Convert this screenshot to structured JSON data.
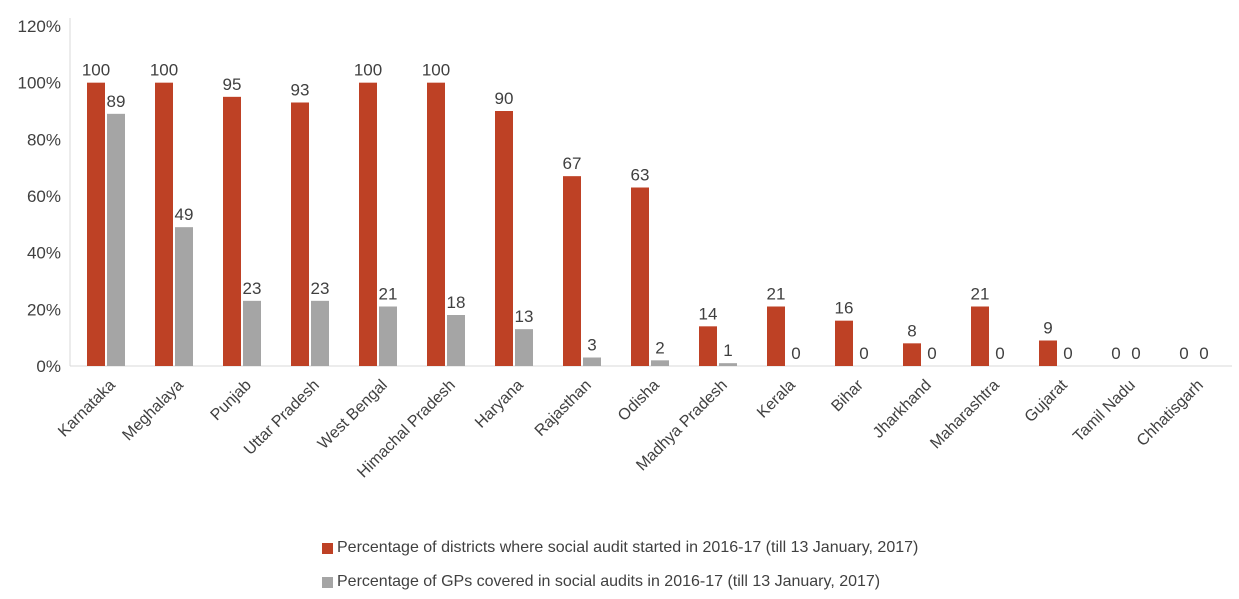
{
  "chart_data": {
    "type": "bar",
    "categories": [
      "Karnataka",
      "Meghalaya",
      "Punjab",
      "Uttar Pradesh",
      "West Bengal",
      "Himachal Pradesh",
      "Haryana",
      "Rajasthan",
      "Odisha",
      "Madhya Pradesh",
      "Kerala",
      "Bihar",
      "Jharkhand",
      "Maharashtra",
      "Gujarat",
      "Tamil Nadu",
      "Chhatisgarh"
    ],
    "series": [
      {
        "name": "Percentage of districts where social audit started in 2016-17 (till 13 January, 2017)",
        "color": "#BE4125",
        "values": [
          100,
          100,
          95,
          93,
          100,
          100,
          90,
          67,
          63,
          14,
          21,
          16,
          8,
          21,
          9,
          0,
          0
        ]
      },
      {
        "name": "Percentage of GPs covered in social audits in 2016-17 (till 13 January, 2017)",
        "color": "#A5A5A5",
        "values": [
          89,
          49,
          23,
          23,
          21,
          18,
          13,
          3,
          2,
          1,
          0,
          0,
          0,
          0,
          0,
          0,
          0
        ]
      }
    ],
    "y_ticks": [
      "0%",
      "20%",
      "40%",
      "60%",
      "80%",
      "100%",
      "120%"
    ],
    "ylim": [
      0,
      120
    ],
    "grid": false,
    "legend_position": "bottom"
  }
}
